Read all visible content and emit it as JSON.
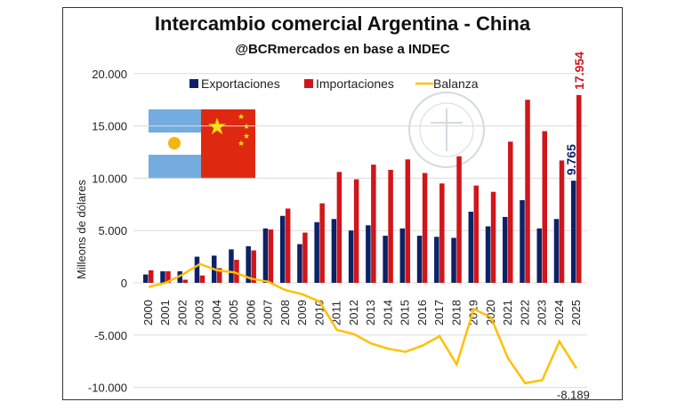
{
  "chart_data": {
    "type": "bar",
    "title": "Intercambio comercial Argentina - China",
    "subtitle": "@BCRmercados en base a INDEC",
    "ylabel": "Milleons de dólares",
    "ylim": [
      -10000,
      20000
    ],
    "yticks": [
      "-10.000",
      "-5.000",
      "0",
      "5.000",
      "10.000",
      "15.000",
      "20.000"
    ],
    "grid": true,
    "legend_placement": "top",
    "categories": [
      "2000",
      "2001",
      "2002",
      "2003",
      "2004",
      "2005",
      "2006",
      "2007",
      "2008",
      "2009",
      "2010",
      "2011",
      "2012",
      "2013",
      "2014",
      "2015",
      "2016",
      "2017",
      "2018",
      "2019",
      "2020",
      "2021",
      "2022",
      "2023",
      "2024",
      "2025"
    ],
    "series": [
      {
        "name": "Exportaciones",
        "type": "bar",
        "color": "#0d2266",
        "values": [
          800,
          1100,
          1100,
          2500,
          2600,
          3200,
          3500,
          5200,
          6400,
          3700,
          5800,
          6100,
          5000,
          5500,
          4500,
          5200,
          4500,
          4400,
          4300,
          6800,
          5400,
          6300,
          7900,
          5200,
          6100,
          9765
        ]
      },
      {
        "name": "Importaciones",
        "type": "bar",
        "color": "#d0161b",
        "values": [
          1200,
          1100,
          300,
          700,
          1400,
          2200,
          3100,
          5100,
          7100,
          4800,
          7600,
          10600,
          9900,
          11300,
          10800,
          11800,
          10500,
          9500,
          12100,
          9300,
          8700,
          13500,
          17500,
          14500,
          11700,
          17954
        ]
      },
      {
        "name": "Balanza",
        "type": "line",
        "color": "#ffc000",
        "values": [
          -400,
          0,
          800,
          1800,
          1200,
          1000,
          400,
          100,
          -700,
          -1100,
          -1800,
          -4500,
          -4900,
          -5800,
          -6300,
          -6600,
          -6000,
          -5100,
          -7800,
          -2500,
          -3300,
          -7200,
          -9600,
          -9300,
          -5600,
          -8189
        ]
      }
    ],
    "annotations": [
      {
        "series": "Exportaciones",
        "category": "2025",
        "text": "9.765"
      },
      {
        "series": "Importaciones",
        "category": "2025",
        "text": "17.954"
      },
      {
        "series": "Balanza",
        "category": "2025",
        "text": "-8.189"
      }
    ],
    "watermark": "BOLSA DE COMERCIO DE ROSARIO"
  }
}
